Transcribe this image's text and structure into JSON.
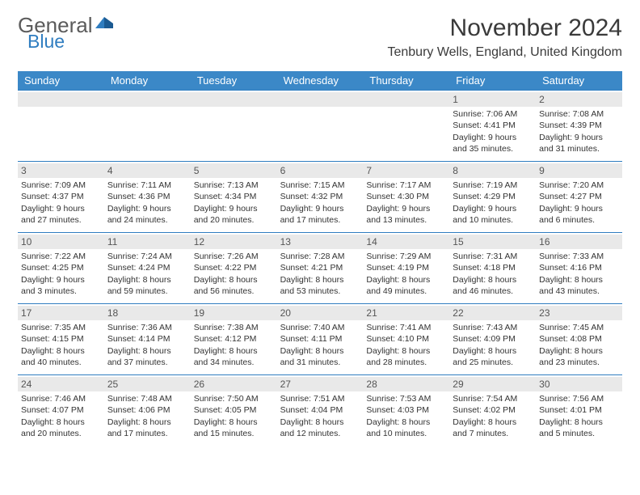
{
  "brand": {
    "general": "General",
    "blue": "Blue"
  },
  "title": "November 2024",
  "location": "Tenbury Wells, England, United Kingdom",
  "colors": {
    "header_bg": "#3b88c7",
    "accent": "#2f7dc0",
    "daynum_bg": "#e9e9e9",
    "text": "#333333",
    "logo_gray": "#5b5b5b"
  },
  "weekdays": [
    "Sunday",
    "Monday",
    "Tuesday",
    "Wednesday",
    "Thursday",
    "Friday",
    "Saturday"
  ],
  "grid": {
    "leading_blanks": 5,
    "days": [
      {
        "n": 1,
        "sunrise": "7:06 AM",
        "sunset": "4:41 PM",
        "dl": "9 hours and 35 minutes."
      },
      {
        "n": 2,
        "sunrise": "7:08 AM",
        "sunset": "4:39 PM",
        "dl": "9 hours and 31 minutes."
      },
      {
        "n": 3,
        "sunrise": "7:09 AM",
        "sunset": "4:37 PM",
        "dl": "9 hours and 27 minutes."
      },
      {
        "n": 4,
        "sunrise": "7:11 AM",
        "sunset": "4:36 PM",
        "dl": "9 hours and 24 minutes."
      },
      {
        "n": 5,
        "sunrise": "7:13 AM",
        "sunset": "4:34 PM",
        "dl": "9 hours and 20 minutes."
      },
      {
        "n": 6,
        "sunrise": "7:15 AM",
        "sunset": "4:32 PM",
        "dl": "9 hours and 17 minutes."
      },
      {
        "n": 7,
        "sunrise": "7:17 AM",
        "sunset": "4:30 PM",
        "dl": "9 hours and 13 minutes."
      },
      {
        "n": 8,
        "sunrise": "7:19 AM",
        "sunset": "4:29 PM",
        "dl": "9 hours and 10 minutes."
      },
      {
        "n": 9,
        "sunrise": "7:20 AM",
        "sunset": "4:27 PM",
        "dl": "9 hours and 6 minutes."
      },
      {
        "n": 10,
        "sunrise": "7:22 AM",
        "sunset": "4:25 PM",
        "dl": "9 hours and 3 minutes."
      },
      {
        "n": 11,
        "sunrise": "7:24 AM",
        "sunset": "4:24 PM",
        "dl": "8 hours and 59 minutes."
      },
      {
        "n": 12,
        "sunrise": "7:26 AM",
        "sunset": "4:22 PM",
        "dl": "8 hours and 56 minutes."
      },
      {
        "n": 13,
        "sunrise": "7:28 AM",
        "sunset": "4:21 PM",
        "dl": "8 hours and 53 minutes."
      },
      {
        "n": 14,
        "sunrise": "7:29 AM",
        "sunset": "4:19 PM",
        "dl": "8 hours and 49 minutes."
      },
      {
        "n": 15,
        "sunrise": "7:31 AM",
        "sunset": "4:18 PM",
        "dl": "8 hours and 46 minutes."
      },
      {
        "n": 16,
        "sunrise": "7:33 AM",
        "sunset": "4:16 PM",
        "dl": "8 hours and 43 minutes."
      },
      {
        "n": 17,
        "sunrise": "7:35 AM",
        "sunset": "4:15 PM",
        "dl": "8 hours and 40 minutes."
      },
      {
        "n": 18,
        "sunrise": "7:36 AM",
        "sunset": "4:14 PM",
        "dl": "8 hours and 37 minutes."
      },
      {
        "n": 19,
        "sunrise": "7:38 AM",
        "sunset": "4:12 PM",
        "dl": "8 hours and 34 minutes."
      },
      {
        "n": 20,
        "sunrise": "7:40 AM",
        "sunset": "4:11 PM",
        "dl": "8 hours and 31 minutes."
      },
      {
        "n": 21,
        "sunrise": "7:41 AM",
        "sunset": "4:10 PM",
        "dl": "8 hours and 28 minutes."
      },
      {
        "n": 22,
        "sunrise": "7:43 AM",
        "sunset": "4:09 PM",
        "dl": "8 hours and 25 minutes."
      },
      {
        "n": 23,
        "sunrise": "7:45 AM",
        "sunset": "4:08 PM",
        "dl": "8 hours and 23 minutes."
      },
      {
        "n": 24,
        "sunrise": "7:46 AM",
        "sunset": "4:07 PM",
        "dl": "8 hours and 20 minutes."
      },
      {
        "n": 25,
        "sunrise": "7:48 AM",
        "sunset": "4:06 PM",
        "dl": "8 hours and 17 minutes."
      },
      {
        "n": 26,
        "sunrise": "7:50 AM",
        "sunset": "4:05 PM",
        "dl": "8 hours and 15 minutes."
      },
      {
        "n": 27,
        "sunrise": "7:51 AM",
        "sunset": "4:04 PM",
        "dl": "8 hours and 12 minutes."
      },
      {
        "n": 28,
        "sunrise": "7:53 AM",
        "sunset": "4:03 PM",
        "dl": "8 hours and 10 minutes."
      },
      {
        "n": 29,
        "sunrise": "7:54 AM",
        "sunset": "4:02 PM",
        "dl": "8 hours and 7 minutes."
      },
      {
        "n": 30,
        "sunrise": "7:56 AM",
        "sunset": "4:01 PM",
        "dl": "8 hours and 5 minutes."
      }
    ]
  },
  "labels": {
    "sunrise": "Sunrise:",
    "sunset": "Sunset:",
    "daylight": "Daylight:"
  }
}
